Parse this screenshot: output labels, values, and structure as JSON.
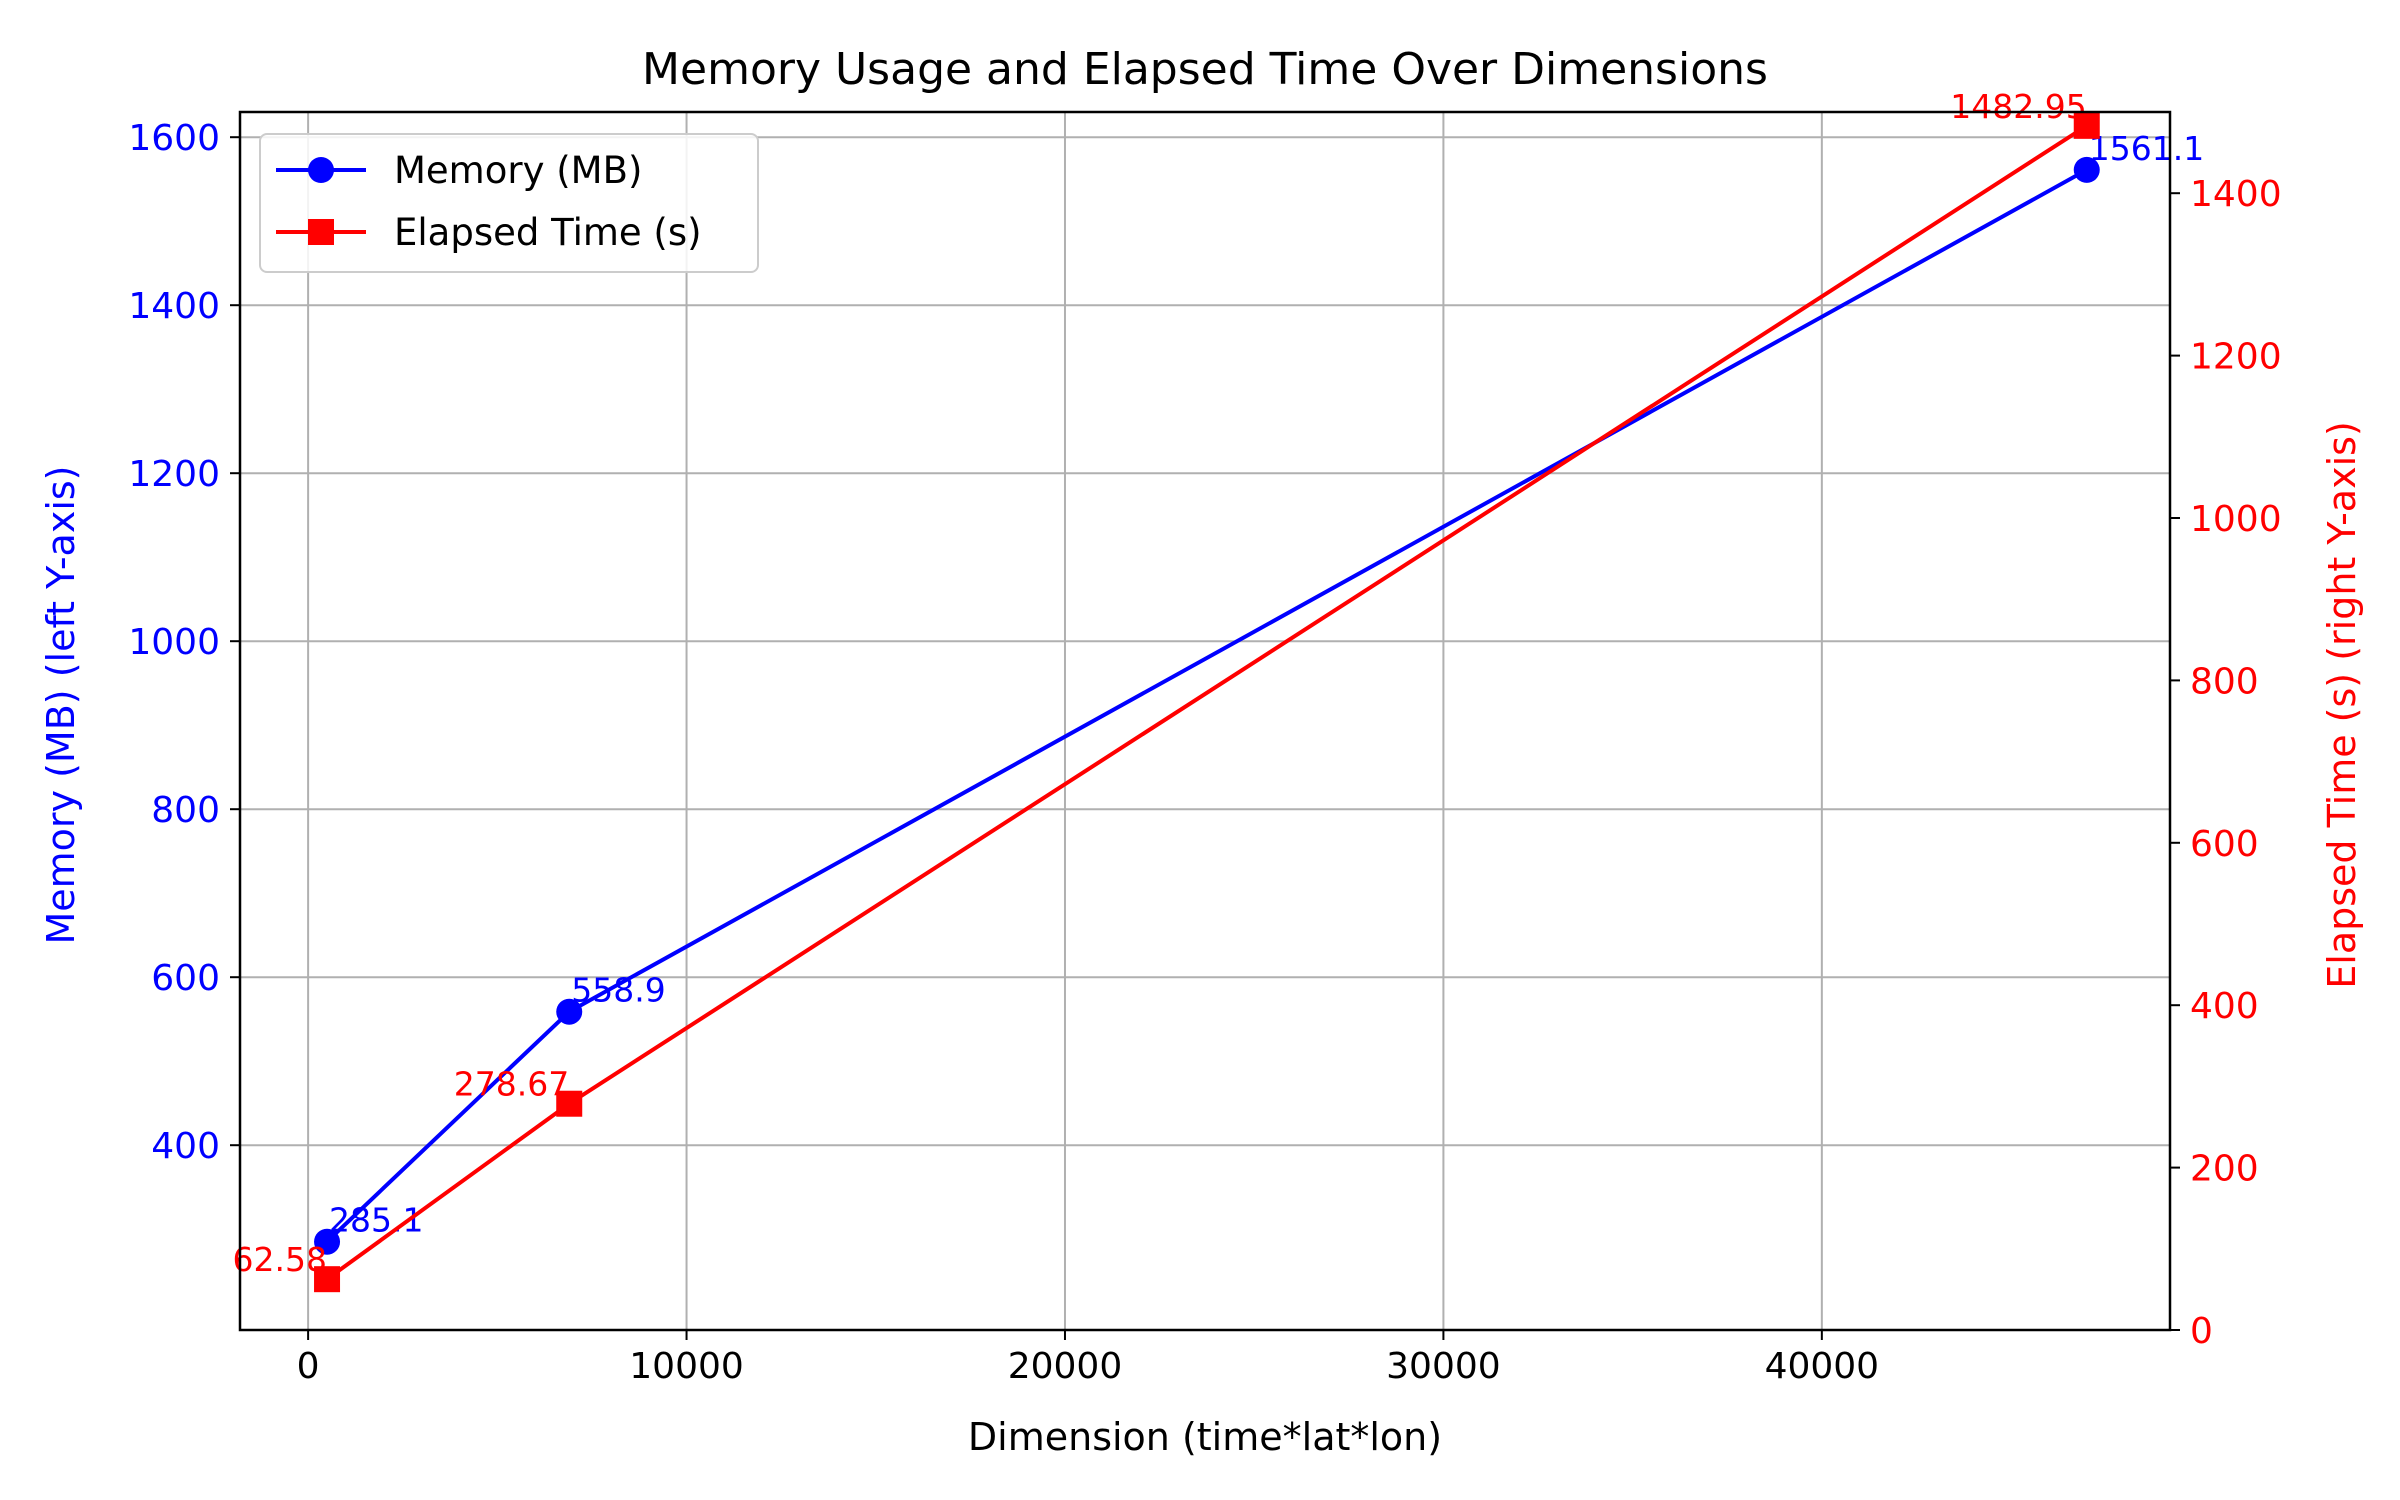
{
  "chart_data": {
    "type": "line",
    "title": "Memory Usage and Elapsed Time Over Dimensions",
    "xlabel": "Dimension (time*lat*lon)",
    "ylabel_left": "Memory (MB) (left Y-axis)",
    "ylabel_right": "Elapsed Time (s) (right Y-axis)",
    "xlim": [
      -1800,
      49200
    ],
    "ylim_left": [
      180,
      1630
    ],
    "ylim_right": [
      0,
      1500
    ],
    "grid": true,
    "legend_position": "top-left",
    "x_ticks": [
      0,
      10000,
      20000,
      30000,
      40000
    ],
    "x_tick_labels": [
      "0",
      "10000",
      "20000",
      "30000",
      "40000"
    ],
    "y_left_ticks": [
      400,
      600,
      800,
      1000,
      1200,
      1400,
      1600
    ],
    "y_left_tick_labels": [
      "400",
      "600",
      "800",
      "1000",
      "1200",
      "1400",
      "1600"
    ],
    "y_right_ticks": [
      0,
      200,
      400,
      600,
      800,
      1000,
      1200,
      1400
    ],
    "y_right_tick_labels": [
      "0",
      "200",
      "400",
      "600",
      "800",
      "1000",
      "1200",
      "1400"
    ],
    "series": [
      {
        "name": "Memory (MB)",
        "axis": "left",
        "color": "#0000ff",
        "marker": "circle",
        "x": [
          500,
          6900,
          47000
        ],
        "values": [
          285.1,
          558.9,
          1561.1
        ],
        "labels": [
          "285.1",
          "558.9",
          "1561.1"
        ]
      },
      {
        "name": "Elapsed Time (s)",
        "axis": "right",
        "color": "#ff0000",
        "marker": "square",
        "x": [
          500,
          6900,
          47000
        ],
        "values": [
          62.58,
          278.67,
          1482.95
        ],
        "labels": [
          "62.58",
          "278.67",
          "1482.95"
        ]
      }
    ]
  }
}
